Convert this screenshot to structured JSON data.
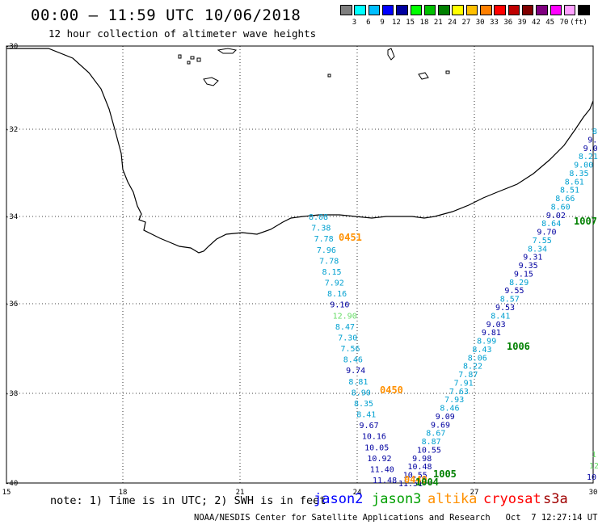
{
  "title": "00:00 – 11:59 UTC 10/06/2018",
  "subtitle": "12 hour collection of altimeter wave heights",
  "colorbar": {
    "colors": [
      "#7f7f7f",
      "#00ffff",
      "#00bfff",
      "#0000ff",
      "#0000a0",
      "#00ff00",
      "#00c000",
      "#008000",
      "#ffff00",
      "#ffc000",
      "#ff8000",
      "#ff0000",
      "#c00000",
      "#800000",
      "#800080",
      "#ff00ff",
      "#ffa0ff",
      "#000000"
    ],
    "labels": [
      "3",
      "6",
      "9",
      "12",
      "15",
      "18",
      "21",
      "24",
      "27",
      "30",
      "33",
      "36",
      "39",
      "42",
      "45",
      "70",
      "(ft)"
    ]
  },
  "axes": {
    "lon_labels": [
      "15",
      "18",
      "21",
      "24",
      "27",
      "30"
    ],
    "lat_labels": [
      "-30",
      "-32",
      "-34",
      "-36",
      "-38",
      "-40"
    ]
  },
  "tracks": {
    "western": {
      "points": [
        {
          "v": "8.08",
          "c": "#00a0d0"
        },
        {
          "v": "7.38",
          "c": "#00a0d0"
        },
        {
          "v": "7.78",
          "c": "#00a0d0"
        },
        {
          "v": "7.96",
          "c": "#00a0d0"
        },
        {
          "v": "7.78",
          "c": "#00a0d0"
        },
        {
          "v": "8.15",
          "c": "#00a0d0"
        },
        {
          "v": "7.92",
          "c": "#00a0d0"
        },
        {
          "v": "8.16",
          "c": "#00a0d0"
        },
        {
          "v": "9.10",
          "c": "#0000a0"
        },
        {
          "v": "12.90",
          "c": "#66dd66"
        },
        {
          "v": "8.47",
          "c": "#00a0d0"
        },
        {
          "v": "7.30",
          "c": "#00a0d0"
        },
        {
          "v": "7.56",
          "c": "#00a0d0"
        },
        {
          "v": "8.46",
          "c": "#00a0d0"
        },
        {
          "v": "9.74",
          "c": "#0000a0"
        },
        {
          "v": "8.81",
          "c": "#00a0d0"
        },
        {
          "v": "8.90",
          "c": "#00a0d0"
        },
        {
          "v": "8.35",
          "c": "#00a0d0"
        },
        {
          "v": "8.41",
          "c": "#00a0d0"
        },
        {
          "v": "9.67",
          "c": "#0000a0"
        },
        {
          "v": "10.16",
          "c": "#0000a0"
        },
        {
          "v": "10.05",
          "c": "#0000a0"
        },
        {
          "v": "10.92",
          "c": "#0000a0"
        },
        {
          "v": "11.40",
          "c": "#0000a0"
        },
        {
          "v": "11.48",
          "c": "#0000a0"
        }
      ],
      "times": [
        {
          "t": "0451",
          "c": "#ff9000"
        },
        {
          "t": "0450",
          "c": "#ff9000"
        },
        {
          "t": "0449",
          "c": "#ff9000"
        }
      ]
    },
    "eastern": {
      "points": [
        {
          "v": "11.51",
          "c": "#0000a0"
        },
        {
          "v": "10.55",
          "c": "#0000a0"
        },
        {
          "v": "10.48",
          "c": "#0000a0"
        },
        {
          "v": "9.98",
          "c": "#0000a0"
        },
        {
          "v": "10.55",
          "c": "#0000a0"
        },
        {
          "v": "8.87",
          "c": "#00a0d0"
        },
        {
          "v": "8.67",
          "c": "#00a0d0"
        },
        {
          "v": "9.69",
          "c": "#0000a0"
        },
        {
          "v": "9.09",
          "c": "#0000a0"
        },
        {
          "v": "8.46",
          "c": "#00a0d0"
        },
        {
          "v": "7.93",
          "c": "#00a0d0"
        },
        {
          "v": "7.63",
          "c": "#00a0d0"
        },
        {
          "v": "7.91",
          "c": "#00a0d0"
        },
        {
          "v": "7.87",
          "c": "#00a0d0"
        },
        {
          "v": "8.22",
          "c": "#00a0d0"
        },
        {
          "v": "8.06",
          "c": "#00a0d0"
        },
        {
          "v": "8.43",
          "c": "#00a0d0"
        },
        {
          "v": "8.99",
          "c": "#00a0d0"
        },
        {
          "v": "9.81",
          "c": "#0000a0"
        },
        {
          "v": "9.03",
          "c": "#0000a0"
        },
        {
          "v": "8.41",
          "c": "#00a0d0"
        },
        {
          "v": "9.53",
          "c": "#0000a0"
        },
        {
          "v": "8.57",
          "c": "#00a0d0"
        },
        {
          "v": "9.55",
          "c": "#0000a0"
        },
        {
          "v": "8.29",
          "c": "#00a0d0"
        },
        {
          "v": "9.15",
          "c": "#0000a0"
        },
        {
          "v": "9.35",
          "c": "#0000a0"
        },
        {
          "v": "9.31",
          "c": "#0000a0"
        },
        {
          "v": "8.34",
          "c": "#00a0d0"
        },
        {
          "v": "7.55",
          "c": "#00a0d0"
        },
        {
          "v": "9.70",
          "c": "#0000a0"
        },
        {
          "v": "8.64",
          "c": "#00a0d0"
        },
        {
          "v": "9.02",
          "c": "#0000a0"
        },
        {
          "v": "8.60",
          "c": "#00a0d0"
        },
        {
          "v": "8.66",
          "c": "#00a0d0"
        },
        {
          "v": "8.51",
          "c": "#00a0d0"
        },
        {
          "v": "8.61",
          "c": "#00a0d0"
        },
        {
          "v": "8.35",
          "c": "#00a0d0"
        },
        {
          "v": "9.00",
          "c": "#00a0d0"
        },
        {
          "v": "8.21",
          "c": "#00a0d0"
        },
        {
          "v": "9.0",
          "c": "#0000a0"
        },
        {
          "v": "9.",
          "c": "#0000a0"
        },
        {
          "v": "8.",
          "c": "#00a0d0"
        }
      ],
      "times": [
        {
          "t": "1004",
          "c": "#008000"
        },
        {
          "t": "1005",
          "c": "#008000"
        },
        {
          "t": "1006",
          "c": "#008000"
        },
        {
          "t": "1007",
          "c": "#008000"
        }
      ]
    },
    "edge": {
      "points": [
        {
          "v": "10.",
          "c": "#0000a0"
        },
        {
          "v": "12",
          "c": "#66dd66"
        },
        {
          "v": "1",
          "c": "#66dd66"
        }
      ]
    }
  },
  "note": "note: 1) Time is in UTC; 2) SWH is in feet",
  "satellites": [
    {
      "name": "jason2",
      "color": "#0000ff"
    },
    {
      "name": "jason3",
      "color": "#00a000"
    },
    {
      "name": "altika",
      "color": "#ff9000"
    },
    {
      "name": "cryosat",
      "color": "#ff0000"
    },
    {
      "name": "s3a",
      "color": "#a00000"
    }
  ],
  "credit": "NOAA/NESDIS Center for Satellite Applications and Research   Oct  7 12:27:14 UTC 2018"
}
